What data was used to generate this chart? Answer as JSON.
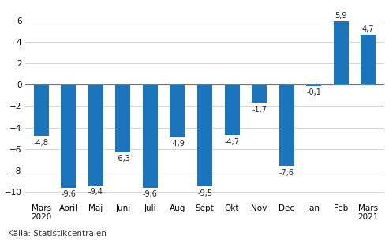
{
  "categories": [
    "Mars\n2020",
    "April",
    "Maj",
    "Juni",
    "Juli",
    "Aug",
    "Sept",
    "Okt",
    "Nov",
    "Dec",
    "Jan",
    "Feb",
    "Mars\n2021"
  ],
  "values": [
    -4.8,
    -9.6,
    -9.4,
    -6.3,
    -9.6,
    -4.9,
    -9.5,
    -4.7,
    -1.7,
    -7.6,
    -0.1,
    5.9,
    4.7
  ],
  "bar_color": "#1a75bc",
  "label_color": "#222222",
  "background_color": "#ffffff",
  "ylim": [
    -11,
    7.5
  ],
  "yticks": [
    -10,
    -8,
    -6,
    -4,
    -2,
    0,
    2,
    4,
    6
  ],
  "source_text": "Källa: Statistikcentralen",
  "label_fontsize": 7.0,
  "tick_fontsize": 7.5,
  "source_fontsize": 7.5,
  "bar_width": 0.55
}
